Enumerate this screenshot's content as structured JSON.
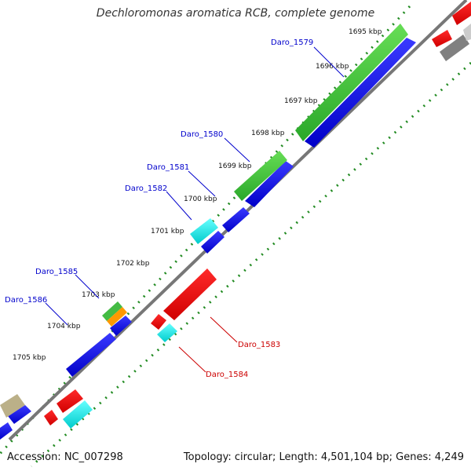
{
  "title": "Dechloromonas aromatica RCB, complete genome",
  "footer": {
    "accession": "Accession: NC_007298",
    "topology": "Topology: circular; Length: 4,501,104 bp; Genes: 4,249"
  },
  "colors": {
    "forward_gene": "#0000e6",
    "reverse_gene": "#e60000",
    "green_feature": "#33bb33",
    "cyan_feature": "#00e6e6",
    "orange_feature": "#ff9900",
    "khaki_feature": "#bbb088",
    "gray_feature": "#808080",
    "backbone": "#777777",
    "tick_dots": "#228b22"
  },
  "kbp_ticks": [
    "1695 kbp",
    "1696 kbp",
    "1697 kbp",
    "1698 kbp",
    "1699 kbp",
    "1700 kbp",
    "1701 kbp",
    "1702 kbp",
    "1703 kbp",
    "1704 kbp",
    "1705 kbp"
  ],
  "gene_labels": {
    "daro_1579": "Daro_1579",
    "daro_1580": "Daro_1580",
    "daro_1581": "Daro_1581",
    "daro_1582": "Daro_1582",
    "daro_1583": "Daro_1583",
    "daro_1584": "Daro_1584",
    "daro_1585": "Daro_1585",
    "daro_1586": "Daro_1586"
  }
}
